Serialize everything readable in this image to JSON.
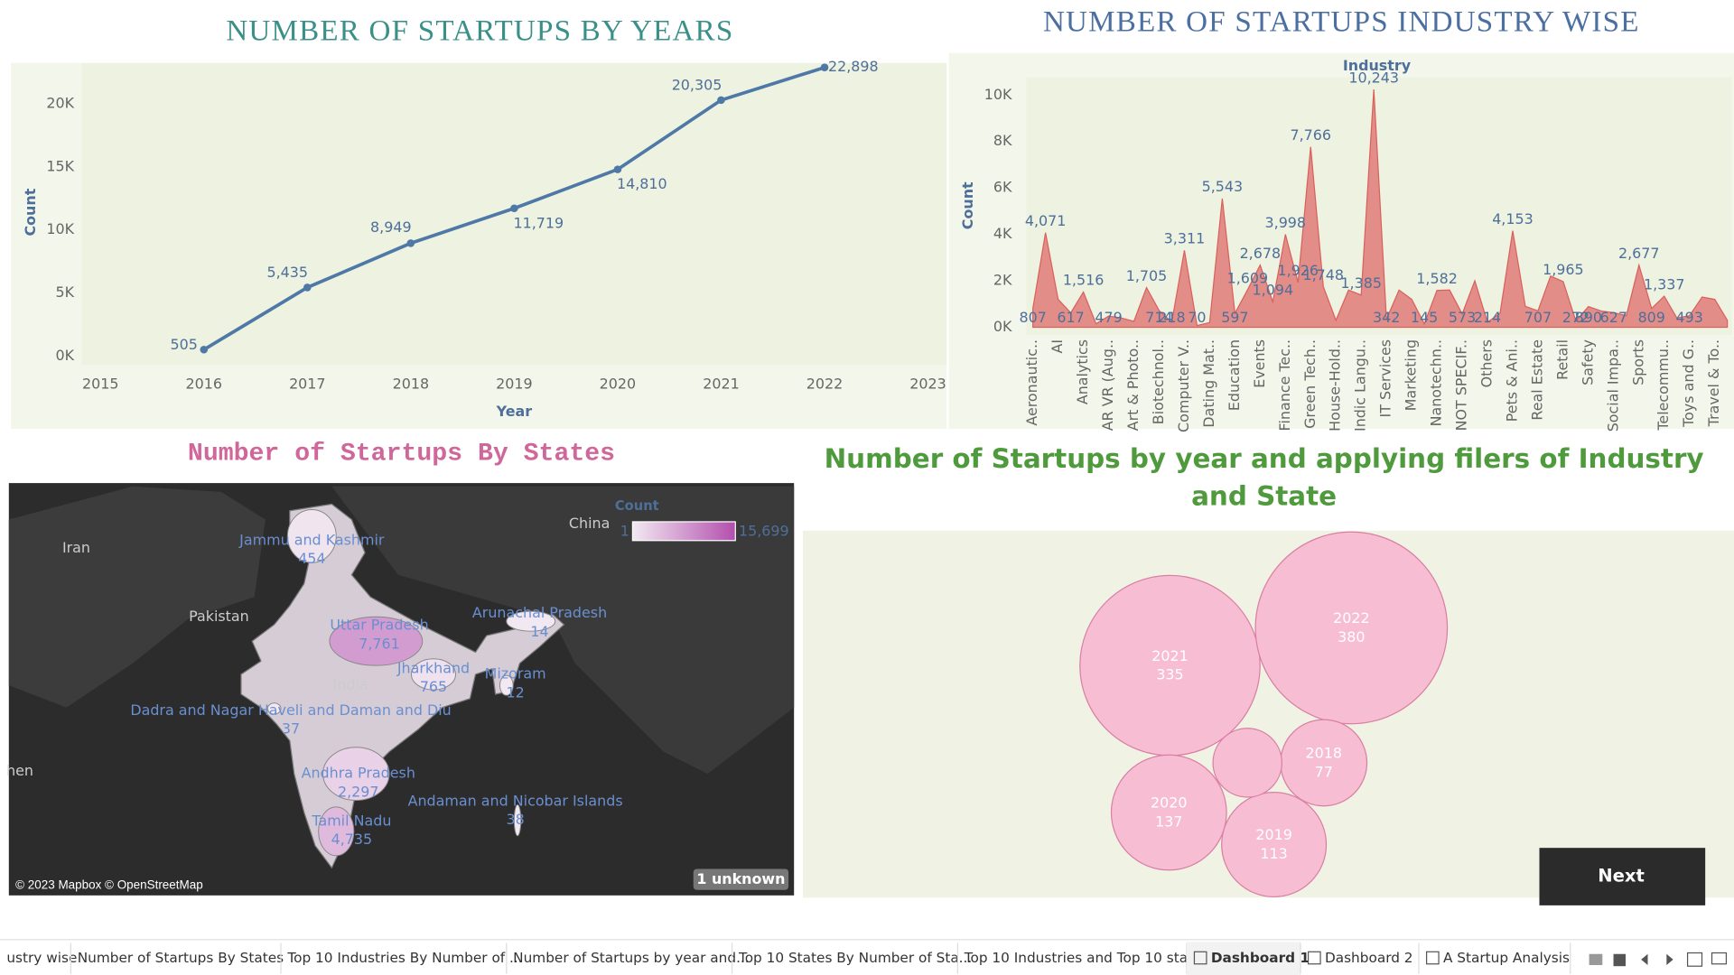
{
  "chart_data": [
    {
      "type": "line",
      "title": "NUMBER OF STARTUPS BY YEARS",
      "x_label": "Year",
      "y_label": "Count",
      "x": [
        2016,
        2017,
        2018,
        2019,
        2020,
        2021,
        2022
      ],
      "values": [
        505,
        5435,
        8949,
        11719,
        14810,
        20305,
        22898
      ],
      "value_labels": [
        "505",
        "5,435",
        "8,949",
        "11,719",
        "14,810",
        "20,305",
        "22,898"
      ],
      "color": "#4e79a7",
      "xlim": [
        2014.82,
        2023.18
      ],
      "xticks": [
        2015,
        2016,
        2017,
        2018,
        2019,
        2020,
        2021,
        2022,
        2023
      ],
      "ylim": [
        -700,
        23250
      ],
      "yticks": [
        {
          "value": 0,
          "label": "0K"
        },
        {
          "value": 5000,
          "label": "5K"
        },
        {
          "value": 10000,
          "label": "10K"
        },
        {
          "value": 15000,
          "label": "15K"
        },
        {
          "value": 20000,
          "label": "20K"
        }
      ],
      "grid": false
    },
    {
      "type": "area",
      "title": "NUMBER OF STARTUPS INDUSTRY WISE",
      "x_label": "Industry",
      "y_label": "Count",
      "color": "#e07b78",
      "categories": [
        "Aeronautic..",
        null,
        "AI",
        null,
        "Analytics",
        null,
        "AR VR (Aug..",
        null,
        "Art & Photo..",
        null,
        "Biotechnol..",
        null,
        "Computer V..",
        null,
        "Dating Mat..",
        null,
        "Education",
        null,
        "Events",
        null,
        "Finance Tec..",
        null,
        "Green Tech..",
        null,
        "House-Hold..",
        null,
        "Indic Langu..",
        null,
        "IT Services",
        null,
        "Marketing",
        null,
        "Nanotechn..",
        null,
        "NOT SPECIF..",
        null,
        "Others",
        null,
        "Pets & Ani..",
        null,
        "Real Estate",
        null,
        "Retail",
        null,
        "Safety",
        null,
        "Social Impa..",
        null,
        "Sports",
        null,
        "Telecommu..",
        null,
        "Toys and G..",
        null,
        "Travel & To..",
        null
      ],
      "values": [
        807,
        4071,
        1200,
        617,
        1516,
        150,
        479,
        400,
        250,
        1705,
        714,
        218,
        3311,
        70,
        200,
        5543,
        597,
        1609,
        2678,
        1094,
        3998,
        1926,
        7766,
        1748,
        300,
        1600,
        1385,
        10243,
        342,
        1600,
        1200,
        145,
        1582,
        1600,
        573,
        2000,
        214,
        600,
        4153,
        900,
        707,
        2200,
        1965,
        272,
        890,
        700,
        627,
        500,
        2677,
        809,
        1337,
        400,
        493,
        1300,
        1200,
        300
      ],
      "value_labels": [
        "807",
        "4,071",
        null,
        "617",
        "1,516",
        null,
        "479",
        null,
        null,
        "1,705",
        "714",
        "218",
        "3,311",
        "70",
        null,
        "5,543",
        "597",
        "1,609",
        "2,678",
        "1,094",
        "3,998",
        "1,926",
        "7,766",
        "1,748",
        null,
        null,
        "1,385",
        "10,243",
        "342",
        null,
        null,
        "145",
        "1,582",
        null,
        "573",
        null,
        "214",
        null,
        "4,153",
        null,
        "707",
        null,
        "1,965",
        "272",
        "890",
        null,
        "627",
        null,
        "2,677",
        "809",
        "1,337",
        null,
        "493",
        null,
        null,
        null
      ],
      "ylim": [
        -333,
        10760
      ],
      "yticks": [
        {
          "value": 0,
          "label": "0K"
        },
        {
          "value": 2000,
          "label": "2K"
        },
        {
          "value": 4000,
          "label": "4K"
        },
        {
          "value": 6000,
          "label": "6K"
        },
        {
          "value": 8000,
          "label": "8K"
        },
        {
          "value": 10000,
          "label": "10K"
        }
      ],
      "grid": false
    },
    {
      "type": "map",
      "title": "Number of Startups By States",
      "categories": [
        "Jammu and Kashmir",
        "Uttar Pradesh",
        "Arunachal Pradesh",
        "Jharkhand",
        "Mizoram",
        "Dadra and Nagar Haveli and Daman and Diu",
        "Andhra Pradesh",
        "Andaman and Nicobar Islands",
        "Tamil Nadu"
      ],
      "values": [
        454,
        7761,
        14,
        765,
        12,
        37,
        2297,
        38,
        4735
      ],
      "value_labels": [
        "454",
        "7,761",
        "14",
        "765",
        "12",
        "37",
        "2,297",
        "38",
        "4,735"
      ],
      "color_scale": {
        "title": "Count",
        "min": 1,
        "max": {
          "value": 15699,
          "label": "15,699"
        },
        "colors": [
          "#f2e8f1",
          "#b24fae"
        ]
      },
      "places": [
        "Iran",
        "Pakistan",
        "China",
        "India",
        "hen"
      ],
      "attribution": "© 2023 Mapbox © OpenStreetMap",
      "unknown_note": "1 unknown"
    },
    {
      "type": "bubble",
      "title": "Number of Startups by year and applying filers of Industry and State",
      "color": "#f7bdd3",
      "categories": [
        2021,
        2022,
        2020,
        2019,
        2018,
        null
      ],
      "values": [
        335,
        380,
        137,
        113,
        77,
        49
      ]
    }
  ],
  "tabs": [
    "ustry wise",
    "Number of Startups By States",
    "Top 10 Industries By Number of ...",
    "Number of Startups by year and...",
    "Top 10 States By Number of Sta...",
    "Top 10 Industries and Top 10 sta...",
    "Dashboard 1",
    "Dashboard 2",
    "A Startup Analysis"
  ],
  "active_tab": "Dashboard 1",
  "next_button": "Next"
}
